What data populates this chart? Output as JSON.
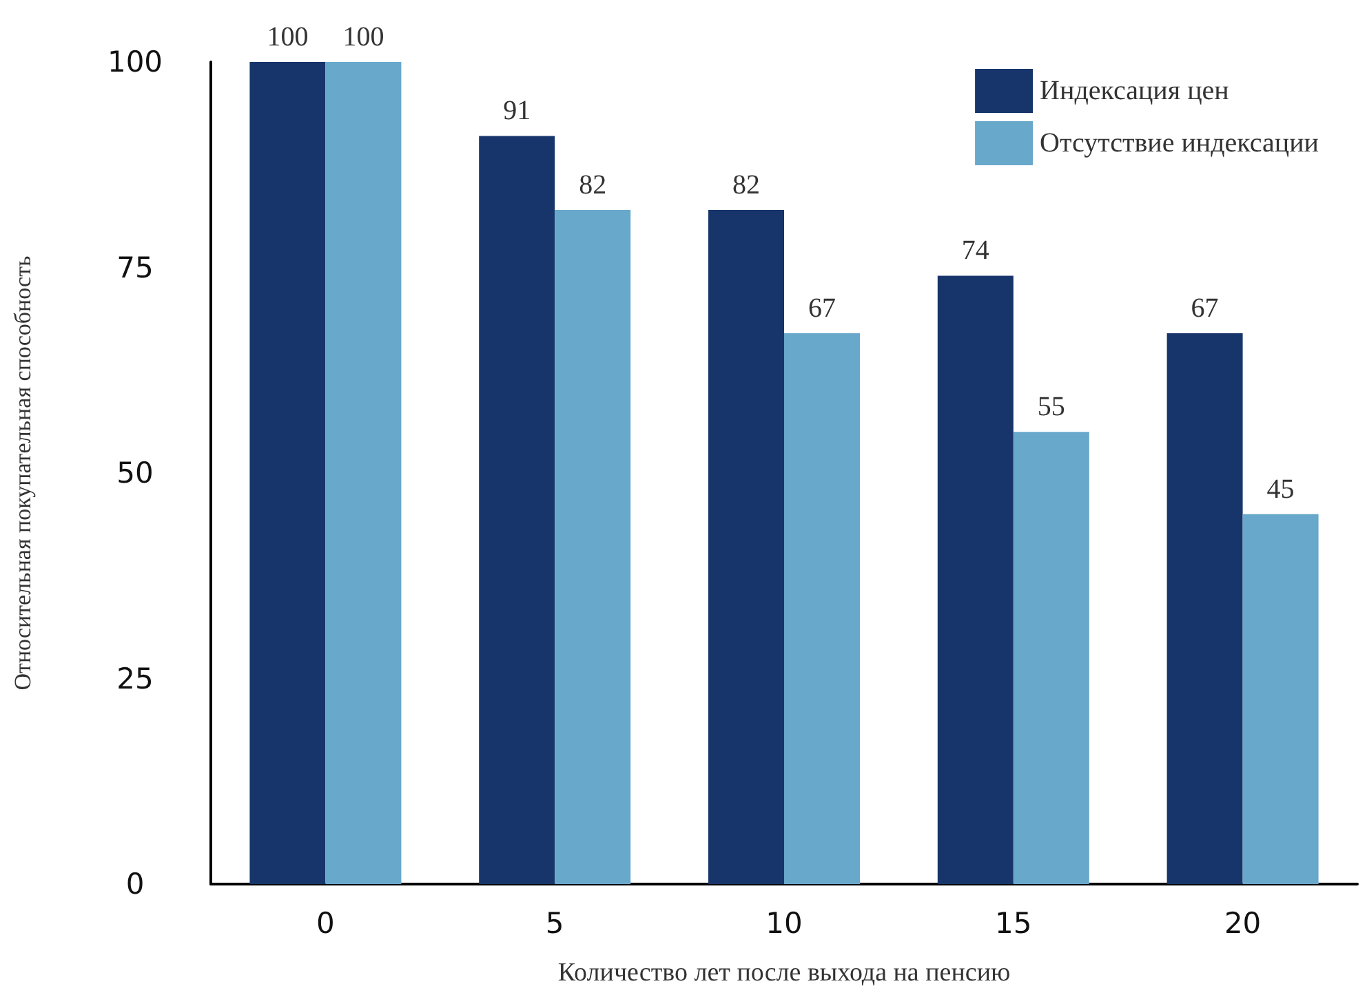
{
  "chart_data": {
    "type": "bar",
    "xlabel": "Количество лет после выхода на пенсию",
    "ylabel": "Относительная покупательная способность",
    "categories": [
      "0",
      "5",
      "10",
      "15",
      "20"
    ],
    "series": [
      {
        "name": "Индексация цен",
        "color": "#17356b",
        "values": [
          100,
          91,
          82,
          74,
          67
        ]
      },
      {
        "name": "Отсутствие индексации",
        "color": "#68a8cb",
        "values": [
          100,
          82,
          67,
          55,
          45
        ]
      }
    ],
    "ylim": [
      0,
      100
    ],
    "yticks": [
      0,
      25,
      50,
      75,
      100
    ],
    "grid": false,
    "legend": "top right",
    "data_labels": true
  }
}
